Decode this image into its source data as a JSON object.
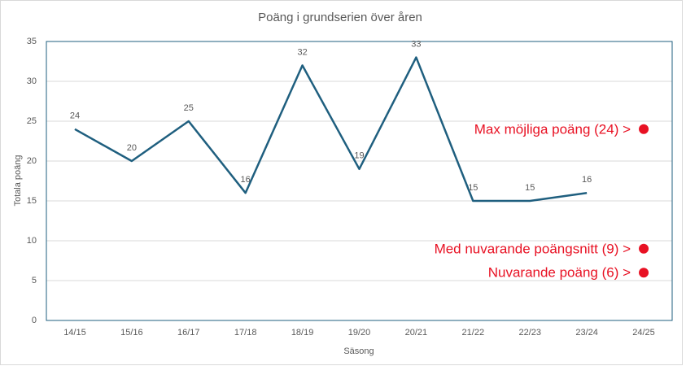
{
  "chart_data": {
    "type": "line",
    "title": "Poäng i grundserien över åren",
    "x_label": "Säsong",
    "y_label": "Totala poäng",
    "categories": [
      "14/15",
      "15/16",
      "16/17",
      "17/18",
      "18/19",
      "19/20",
      "20/21",
      "21/22",
      "22/23",
      "23/24",
      "24/25"
    ],
    "values": [
      24,
      20,
      25,
      16,
      32,
      19,
      33,
      15,
      15,
      16,
      null
    ],
    "color": "#1f5f7f",
    "ylim": [
      0,
      35
    ],
    "yticks": [
      0,
      5,
      10,
      15,
      20,
      25,
      30,
      35
    ],
    "grid": true,
    "annotations": [
      {
        "text": "Max möjliga poäng (24) >",
        "value": 24
      },
      {
        "text": "Med nuvarande poängsnitt (9) >",
        "value": 9
      },
      {
        "text": "Nuvarande poäng (6) >",
        "value": 6
      }
    ],
    "annotation_color": "#e81123"
  }
}
